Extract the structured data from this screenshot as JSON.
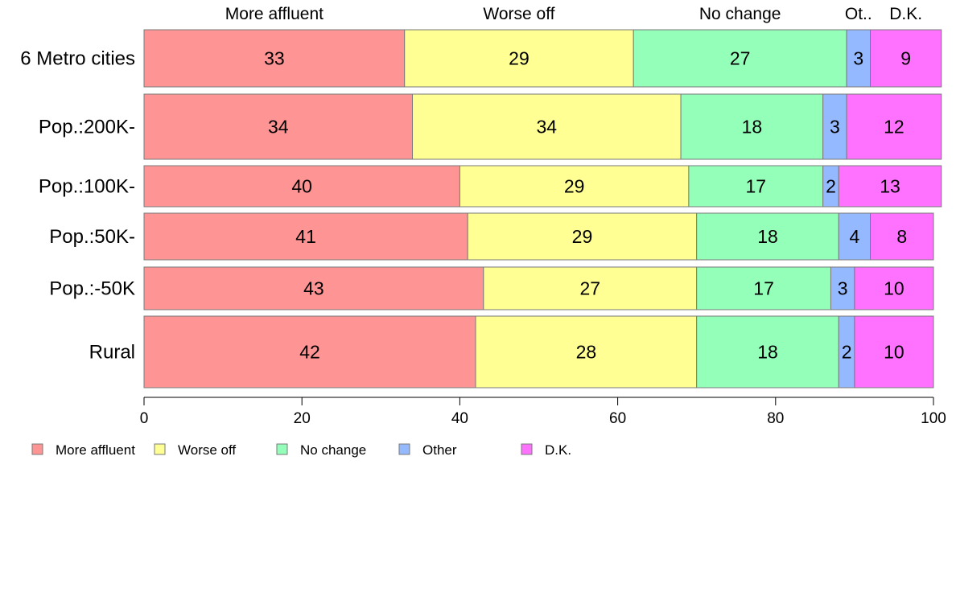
{
  "chart_data": {
    "type": "bar",
    "orientation": "horizontal",
    "stacked": true,
    "categories": [
      "6 Metro cities",
      "Pop.:200K-",
      "Pop.:100K-",
      "Pop.:50K-",
      "Pop.:-50K",
      "Rural"
    ],
    "series": [
      {
        "name": "More affluent",
        "color": "#FF9494",
        "values": [
          33,
          34,
          40,
          41,
          43,
          42
        ]
      },
      {
        "name": "Worse off",
        "color": "#FFFF94",
        "values": [
          29,
          34,
          29,
          29,
          27,
          28
        ]
      },
      {
        "name": "No change",
        "color": "#94FFB9",
        "values": [
          27,
          18,
          17,
          18,
          17,
          18
        ]
      },
      {
        "name": "Other",
        "color": "#94B9FF",
        "values": [
          3,
          3,
          2,
          4,
          3,
          2
        ]
      },
      {
        "name": "D.K.",
        "color": "#FF71FF",
        "values": [
          9,
          12,
          13,
          8,
          10,
          10
        ]
      }
    ],
    "top_labels": [
      "More affluent",
      "Worse off",
      "No change",
      "Ot..",
      "D.K."
    ],
    "xlim": [
      0,
      100
    ],
    "xticks": [
      0,
      20,
      40,
      60,
      80,
      100
    ],
    "grid": false,
    "legend_position": "bottom-left"
  }
}
